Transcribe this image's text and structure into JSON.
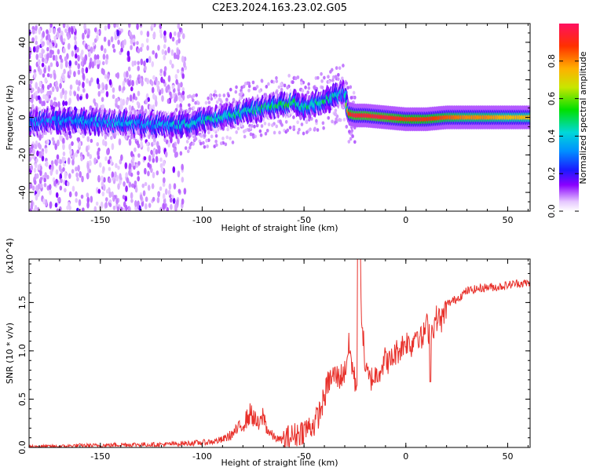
{
  "figure_title": "C2E3.2024.163.23.02.G05",
  "chart_data": [
    {
      "type": "heatmap",
      "title": "",
      "xlabel": "Height of straight line (km)",
      "ylabel": "Frequency (Hz)",
      "xlim": [
        -185,
        61
      ],
      "ylim": [
        -50,
        50
      ],
      "xticks": [
        -150,
        -100,
        -50,
        0,
        50
      ],
      "yticks": [
        -40,
        -20,
        0,
        20,
        40
      ],
      "colorbar": {
        "label": "Normalized spectral amplitude",
        "range": [
          0.0,
          1.0
        ],
        "ticks": [
          0.0,
          0.2,
          0.4,
          0.6,
          0.8
        ],
        "tick_labels": [
          "0.0",
          "0.2",
          "0.4",
          "0.6",
          "0.8"
        ],
        "colormap": "rainbow (violet to red)"
      },
      "ridge": {
        "x": [
          -185,
          -160,
          -140,
          -120,
          -110,
          -100,
          -90,
          -80,
          -70,
          -60,
          -55,
          -50,
          -45,
          -40,
          -35,
          -30,
          -28,
          -25,
          -20,
          -10,
          0,
          10,
          20,
          30,
          40,
          50,
          61
        ],
        "frequency": [
          -2,
          -2,
          -3,
          -4,
          -4,
          -2,
          0,
          3,
          5,
          7,
          8,
          5,
          7,
          9,
          11,
          13,
          2,
          1,
          1,
          0,
          -1,
          -1,
          0,
          0,
          0,
          0,
          0
        ],
        "amplitude": [
          0.3,
          0.35,
          0.35,
          0.35,
          0.4,
          0.4,
          0.45,
          0.45,
          0.45,
          0.5,
          0.5,
          0.45,
          0.45,
          0.45,
          0.4,
          0.35,
          0.9,
          0.95,
          0.95,
          0.95,
          0.9,
          0.9,
          0.85,
          0.8,
          0.8,
          0.75,
          0.75
        ]
      }
    },
    {
      "type": "line",
      "title": "",
      "xlabel": "Height of straight line (km)",
      "ylabel": "SNR (10 * v/v)",
      "y_multiplier": "(x10^4)",
      "xlim": [
        -185,
        61
      ],
      "ylim": [
        0,
        1.95
      ],
      "xticks": [
        -150,
        -100,
        -50,
        0,
        50
      ],
      "yticks": [
        0.0,
        0.5,
        1.0,
        1.5
      ],
      "ytick_labels": [
        "0.0",
        "0.5",
        "1.0",
        "1.5"
      ],
      "series": [
        {
          "color": "#e8302a",
          "x": [
            -185,
            -170,
            -160,
            -150,
            -140,
            -130,
            -120,
            -110,
            -100,
            -95,
            -90,
            -85,
            -80,
            -76,
            -74,
            -72,
            -70,
            -68,
            -65,
            -62,
            -60,
            -55,
            -50,
            -45,
            -42,
            -40,
            -38,
            -35,
            -33,
            -30,
            -28,
            -25,
            -23,
            -22,
            -20,
            -18,
            -15,
            -12,
            -10,
            -8,
            -5,
            -3,
            0,
            3,
            5,
            8,
            10,
            12,
            15,
            18,
            20,
            25,
            30,
            35,
            40,
            45,
            50,
            55,
            61
          ],
          "y": [
            0.01,
            0.01,
            0.02,
            0.02,
            0.03,
            0.03,
            0.03,
            0.04,
            0.05,
            0.06,
            0.08,
            0.14,
            0.24,
            0.36,
            0.28,
            0.22,
            0.34,
            0.18,
            0.11,
            0.08,
            0.08,
            0.12,
            0.18,
            0.24,
            0.38,
            0.52,
            0.68,
            0.75,
            0.72,
            0.78,
            1.05,
            0.68,
            0.62,
            1.5,
            0.82,
            0.7,
            0.74,
            0.84,
            0.92,
            0.88,
            0.98,
            1.02,
            1.1,
            1.06,
            1.22,
            1.1,
            1.28,
            1.16,
            1.34,
            1.32,
            1.48,
            1.54,
            1.62,
            1.64,
            1.66,
            1.66,
            1.68,
            1.7,
            1.7
          ]
        }
      ]
    }
  ]
}
